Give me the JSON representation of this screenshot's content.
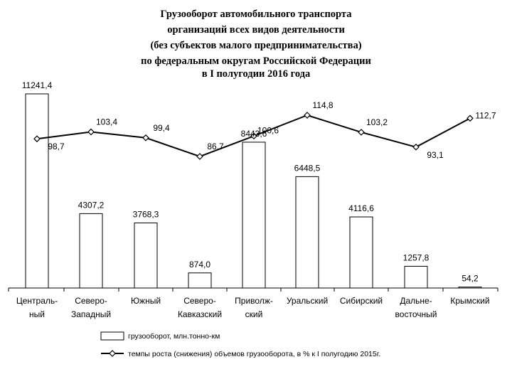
{
  "chart_data": {
    "type": "bar",
    "title_lines": [
      "Грузооборот автомобильного транспорта",
      "организаций всех видов деятельности",
      "(без субъектов малого предпринимательства)",
      "по федеральным округам Российской Федерации",
      "в I полугодии 2016 года"
    ],
    "categories": [
      [
        "Централь-",
        "ный"
      ],
      [
        "Северо-",
        "Западный"
      ],
      [
        "Южный"
      ],
      [
        "Северо-",
        "Кавказский"
      ],
      [
        "Приволж-",
        "ский"
      ],
      [
        "Уральский"
      ],
      [
        "Сибирский"
      ],
      [
        "Дальне-",
        "восточный"
      ],
      [
        "Крымский"
      ]
    ],
    "series": [
      {
        "name": "грузооборот, млн.тонно-км",
        "type": "bar",
        "values": [
          11241.4,
          4307.2,
          3768.3,
          874.0,
          8443.6,
          6448.5,
          4116.6,
          1257.8,
          54.2
        ],
        "labels": [
          "11241,4",
          "4307,2",
          "3768,3",
          "874,0",
          "8443,6",
          "6448,5",
          "4116,6",
          "1257,8",
          "54,2"
        ]
      },
      {
        "name": "темпы роста (снижения) объемов грузооборота, в % к I полугодию 2015г.",
        "type": "line",
        "values": [
          98.7,
          103.4,
          99.4,
          86.7,
          100.6,
          114.8,
          103.2,
          93.1,
          112.7
        ],
        "labels": [
          "98,7",
          "103,4",
          "99,4",
          "86,7",
          "100,6",
          "114,8",
          "103,2",
          "93,1",
          "112,7"
        ]
      }
    ],
    "bar_axis_range": [
      0,
      11241.4
    ],
    "line_axis_range": [
      86.7,
      114.8
    ],
    "legend_position": "bottom",
    "grid": false,
    "colors": {
      "bar_fill": "#ffffff",
      "stroke": "#000000",
      "background": "#ffffff"
    }
  }
}
